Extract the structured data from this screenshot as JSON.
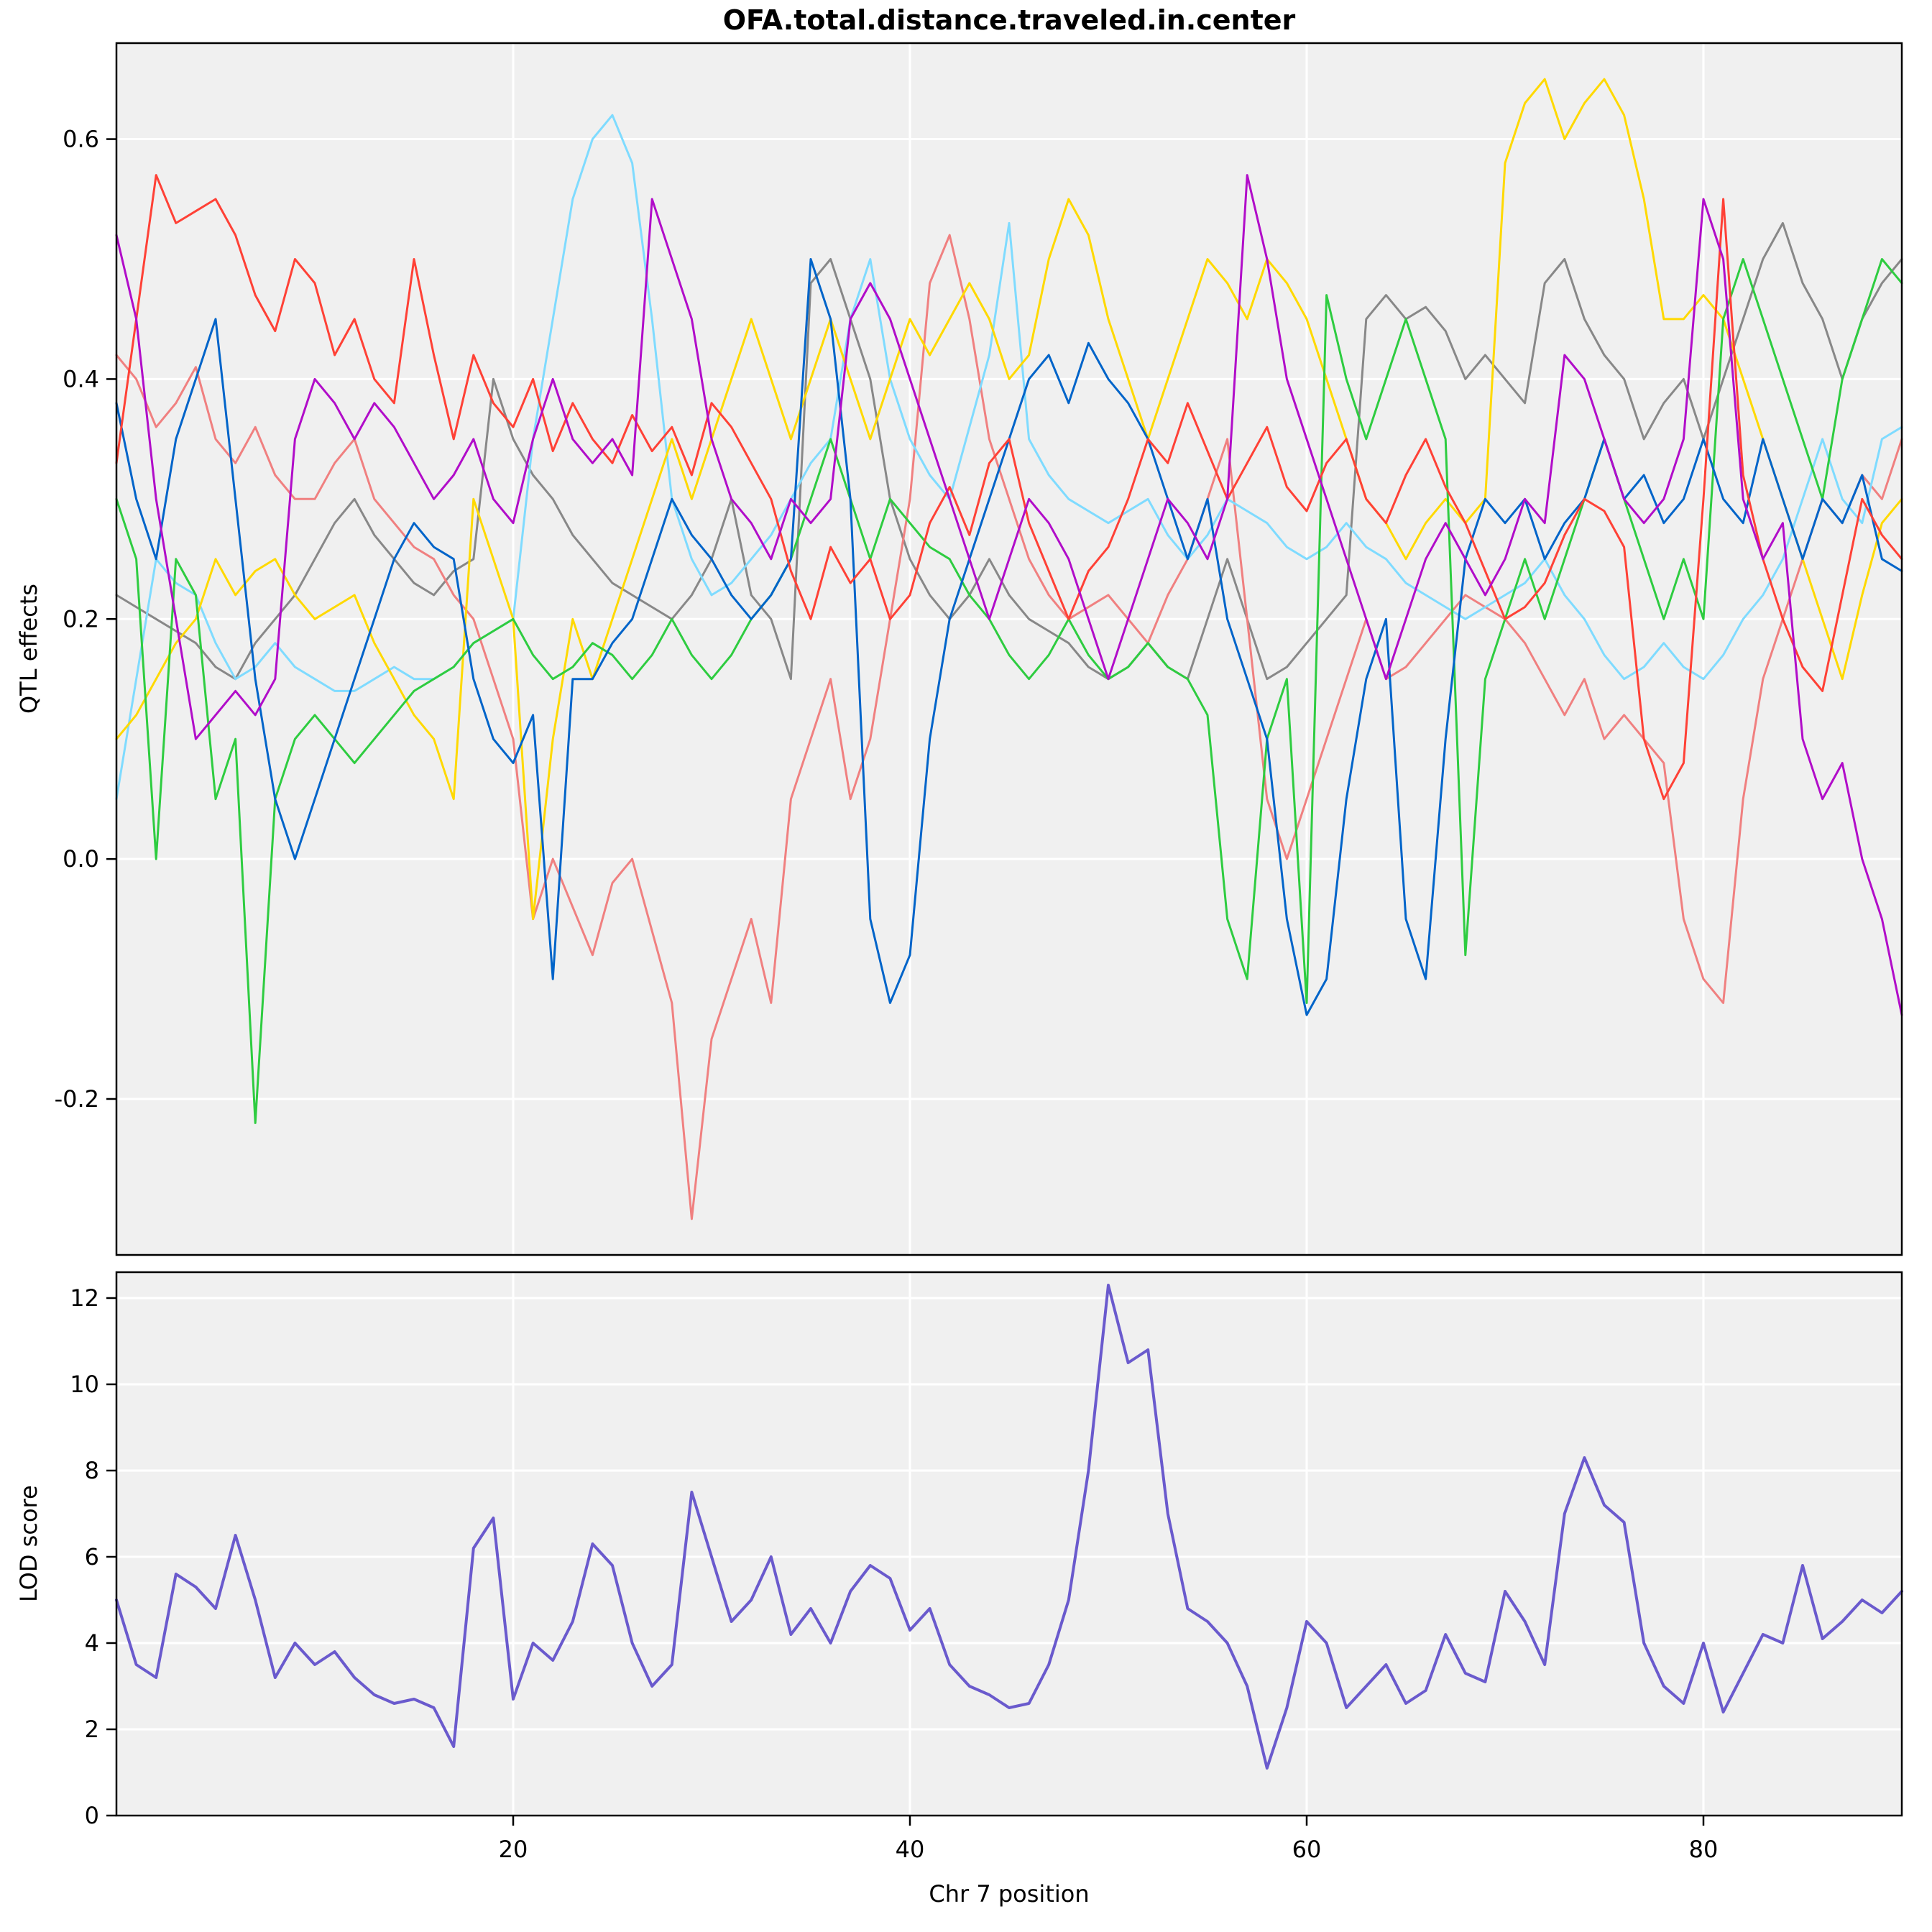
{
  "title": "OFA.total.distance.traveled.in.center",
  "chart_data": [
    {
      "type": "line",
      "title": "OFA.total.distance.traveled.in.center",
      "ylabel": "QTL effects",
      "xlabel": "",
      "xlim": [
        0,
        90
      ],
      "ylim": [
        -0.33,
        0.68
      ],
      "xticks": [
        20,
        40,
        60,
        80
      ],
      "xtick_labels": [
        "20",
        "40",
        "60",
        "80"
      ],
      "yticks": [
        -0.2,
        0.0,
        0.2,
        0.4,
        0.6
      ],
      "ytick_labels": [
        "-0.2",
        "0.0",
        "0.2",
        "0.4",
        "0.6"
      ],
      "panel_bg": "#F0F0F0",
      "grid_color": "#FFFFFF",
      "legend": "none",
      "series": [
        {
          "name": "gray",
          "color": "#888888",
          "width": 3,
          "values": [
            0.22,
            0.21,
            0.2,
            0.19,
            0.18,
            0.16,
            0.15,
            0.18,
            0.2,
            0.22,
            0.25,
            0.28,
            0.3,
            0.27,
            0.25,
            0.23,
            0.22,
            0.24,
            0.25,
            0.4,
            0.35,
            0.32,
            0.3,
            0.27,
            0.25,
            0.23,
            0.22,
            0.21,
            0.2,
            0.22,
            0.25,
            0.3,
            0.22,
            0.2,
            0.15,
            0.48,
            0.5,
            0.45,
            0.4,
            0.3,
            0.25,
            0.22,
            0.2,
            0.22,
            0.25,
            0.22,
            0.2,
            0.19,
            0.18,
            0.16,
            0.15,
            0.16,
            0.18,
            0.16,
            0.15,
            0.2,
            0.25,
            0.2,
            0.15,
            0.16,
            0.18,
            0.2,
            0.22,
            0.45,
            0.47,
            0.45,
            0.46,
            0.44,
            0.4,
            0.42,
            0.4,
            0.38,
            0.48,
            0.5,
            0.45,
            0.42,
            0.4,
            0.35,
            0.38,
            0.4,
            0.35,
            0.4,
            0.45,
            0.5,
            0.53,
            0.48,
            0.45,
            0.4,
            0.45,
            0.48,
            0.5
          ]
        },
        {
          "name": "salmon",
          "color": "#F08080",
          "width": 3,
          "values": [
            0.42,
            0.4,
            0.36,
            0.38,
            0.41,
            0.35,
            0.33,
            0.36,
            0.32,
            0.3,
            0.3,
            0.33,
            0.35,
            0.3,
            0.28,
            0.26,
            0.25,
            0.22,
            0.2,
            0.15,
            0.1,
            -0.05,
            0.0,
            -0.04,
            -0.08,
            -0.02,
            0.0,
            -0.06,
            -0.12,
            -0.3,
            -0.15,
            -0.1,
            -0.05,
            -0.12,
            0.05,
            0.1,
            0.15,
            0.05,
            0.1,
            0.2,
            0.3,
            0.48,
            0.52,
            0.45,
            0.35,
            0.3,
            0.25,
            0.22,
            0.2,
            0.21,
            0.22,
            0.2,
            0.18,
            0.22,
            0.25,
            0.3,
            0.35,
            0.2,
            0.05,
            0.0,
            0.05,
            0.1,
            0.15,
            0.2,
            0.15,
            0.16,
            0.18,
            0.2,
            0.22,
            0.21,
            0.2,
            0.18,
            0.15,
            0.12,
            0.15,
            0.1,
            0.12,
            0.1,
            0.08,
            -0.05,
            -0.1,
            -0.12,
            0.05,
            0.15,
            0.2,
            0.25,
            0.3,
            0.28,
            0.32,
            0.3,
            0.35
          ]
        },
        {
          "name": "light-blue",
          "color": "#7FDBFF",
          "width": 3,
          "values": [
            0.05,
            0.15,
            0.25,
            0.23,
            0.22,
            0.18,
            0.15,
            0.16,
            0.18,
            0.16,
            0.15,
            0.14,
            0.14,
            0.15,
            0.16,
            0.15,
            0.15,
            0.16,
            0.18,
            0.19,
            0.2,
            0.35,
            0.45,
            0.55,
            0.6,
            0.62,
            0.58,
            0.45,
            0.3,
            0.25,
            0.22,
            0.23,
            0.25,
            0.27,
            0.3,
            0.33,
            0.35,
            0.45,
            0.5,
            0.4,
            0.35,
            0.32,
            0.3,
            0.36,
            0.42,
            0.53,
            0.35,
            0.32,
            0.3,
            0.29,
            0.28,
            0.29,
            0.3,
            0.27,
            0.25,
            0.27,
            0.3,
            0.29,
            0.28,
            0.26,
            0.25,
            0.26,
            0.28,
            0.26,
            0.25,
            0.23,
            0.22,
            0.21,
            0.2,
            0.21,
            0.22,
            0.23,
            0.25,
            0.22,
            0.2,
            0.17,
            0.15,
            0.16,
            0.18,
            0.16,
            0.15,
            0.17,
            0.2,
            0.22,
            0.25,
            0.3,
            0.35,
            0.3,
            0.28,
            0.35,
            0.36
          ]
        },
        {
          "name": "yellow",
          "color": "#FFD900",
          "width": 3,
          "values": [
            0.1,
            0.12,
            0.15,
            0.18,
            0.2,
            0.25,
            0.22,
            0.24,
            0.25,
            0.22,
            0.2,
            0.21,
            0.22,
            0.18,
            0.15,
            0.12,
            0.1,
            0.05,
            0.3,
            0.25,
            0.2,
            -0.05,
            0.1,
            0.2,
            0.15,
            0.2,
            0.25,
            0.3,
            0.35,
            0.3,
            0.35,
            0.4,
            0.45,
            0.4,
            0.35,
            0.4,
            0.45,
            0.4,
            0.35,
            0.4,
            0.45,
            0.42,
            0.45,
            0.48,
            0.45,
            0.4,
            0.42,
            0.5,
            0.55,
            0.52,
            0.45,
            0.4,
            0.35,
            0.4,
            0.45,
            0.5,
            0.48,
            0.45,
            0.5,
            0.48,
            0.45,
            0.4,
            0.35,
            0.3,
            0.28,
            0.25,
            0.28,
            0.3,
            0.28,
            0.3,
            0.58,
            0.63,
            0.65,
            0.6,
            0.63,
            0.65,
            0.62,
            0.55,
            0.45,
            0.45,
            0.47,
            0.45,
            0.4,
            0.35,
            0.3,
            0.25,
            0.2,
            0.15,
            0.22,
            0.28,
            0.3
          ]
        },
        {
          "name": "green",
          "color": "#2ECC40",
          "width": 3,
          "values": [
            0.3,
            0.25,
            0.0,
            0.25,
            0.22,
            0.05,
            0.1,
            -0.22,
            0.05,
            0.1,
            0.12,
            0.1,
            0.08,
            0.1,
            0.12,
            0.14,
            0.15,
            0.16,
            0.18,
            0.19,
            0.2,
            0.17,
            0.15,
            0.16,
            0.18,
            0.17,
            0.15,
            0.17,
            0.2,
            0.17,
            0.15,
            0.17,
            0.2,
            0.22,
            0.25,
            0.3,
            0.35,
            0.3,
            0.25,
            0.3,
            0.28,
            0.26,
            0.25,
            0.22,
            0.2,
            0.17,
            0.15,
            0.17,
            0.2,
            0.17,
            0.15,
            0.16,
            0.18,
            0.16,
            0.15,
            0.12,
            -0.05,
            -0.1,
            0.1,
            0.15,
            -0.12,
            0.47,
            0.4,
            0.35,
            0.4,
            0.45,
            0.4,
            0.35,
            -0.08,
            0.15,
            0.2,
            0.25,
            0.2,
            0.25,
            0.3,
            0.35,
            0.3,
            0.25,
            0.2,
            0.25,
            0.2,
            0.45,
            0.5,
            0.45,
            0.4,
            0.35,
            0.3,
            0.4,
            0.45,
            0.5,
            0.48
          ]
        },
        {
          "name": "dark-blue",
          "color": "#0064C9",
          "width": 3,
          "values": [
            0.38,
            0.3,
            0.25,
            0.35,
            0.4,
            0.45,
            0.3,
            0.15,
            0.05,
            0.0,
            0.05,
            0.1,
            0.15,
            0.2,
            0.25,
            0.28,
            0.26,
            0.25,
            0.15,
            0.1,
            0.08,
            0.12,
            -0.1,
            0.15,
            0.15,
            0.18,
            0.2,
            0.25,
            0.3,
            0.27,
            0.25,
            0.22,
            0.2,
            0.22,
            0.25,
            0.5,
            0.45,
            0.3,
            -0.05,
            -0.12,
            -0.08,
            0.1,
            0.2,
            0.25,
            0.3,
            0.35,
            0.4,
            0.42,
            0.38,
            0.43,
            0.4,
            0.38,
            0.35,
            0.3,
            0.25,
            0.3,
            0.2,
            0.15,
            0.1,
            -0.05,
            -0.13,
            -0.1,
            0.05,
            0.15,
            0.2,
            -0.05,
            -0.1,
            0.1,
            0.25,
            0.3,
            0.28,
            0.3,
            0.25,
            0.28,
            0.3,
            0.35,
            0.3,
            0.32,
            0.28,
            0.3,
            0.35,
            0.3,
            0.28,
            0.35,
            0.3,
            0.25,
            0.3,
            0.28,
            0.32,
            0.25,
            0.24
          ]
        },
        {
          "name": "red",
          "color": "#FF4136",
          "width": 3,
          "values": [
            0.33,
            0.45,
            0.57,
            0.53,
            0.54,
            0.55,
            0.52,
            0.47,
            0.44,
            0.5,
            0.48,
            0.42,
            0.45,
            0.4,
            0.38,
            0.5,
            0.42,
            0.35,
            0.42,
            0.38,
            0.36,
            0.4,
            0.34,
            0.38,
            0.35,
            0.33,
            0.37,
            0.34,
            0.36,
            0.32,
            0.38,
            0.36,
            0.33,
            0.3,
            0.24,
            0.2,
            0.26,
            0.23,
            0.25,
            0.2,
            0.22,
            0.28,
            0.31,
            0.27,
            0.33,
            0.35,
            0.28,
            0.24,
            0.2,
            0.24,
            0.26,
            0.3,
            0.35,
            0.33,
            0.38,
            0.34,
            0.3,
            0.33,
            0.36,
            0.31,
            0.29,
            0.33,
            0.35,
            0.3,
            0.28,
            0.32,
            0.35,
            0.31,
            0.28,
            0.24,
            0.2,
            0.21,
            0.23,
            0.27,
            0.3,
            0.29,
            0.26,
            0.1,
            0.05,
            0.08,
            0.3,
            0.55,
            0.32,
            0.25,
            0.2,
            0.16,
            0.14,
            0.22,
            0.3,
            0.27,
            0.25
          ]
        },
        {
          "name": "purple",
          "color": "#B10DC9",
          "width": 3,
          "values": [
            0.52,
            0.45,
            0.3,
            0.2,
            0.1,
            0.12,
            0.14,
            0.12,
            0.15,
            0.35,
            0.4,
            0.38,
            0.35,
            0.38,
            0.36,
            0.33,
            0.3,
            0.32,
            0.35,
            0.3,
            0.28,
            0.35,
            0.4,
            0.35,
            0.33,
            0.35,
            0.32,
            0.55,
            0.5,
            0.45,
            0.35,
            0.3,
            0.28,
            0.25,
            0.3,
            0.28,
            0.3,
            0.45,
            0.48,
            0.45,
            0.4,
            0.35,
            0.3,
            0.25,
            0.2,
            0.25,
            0.3,
            0.28,
            0.25,
            0.2,
            0.15,
            0.2,
            0.25,
            0.3,
            0.28,
            0.25,
            0.3,
            0.57,
            0.5,
            0.4,
            0.35,
            0.3,
            0.25,
            0.2,
            0.15,
            0.2,
            0.25,
            0.28,
            0.25,
            0.22,
            0.25,
            0.3,
            0.28,
            0.42,
            0.4,
            0.35,
            0.3,
            0.28,
            0.3,
            0.35,
            0.55,
            0.5,
            0.3,
            0.25,
            0.28,
            0.1,
            0.05,
            0.08,
            0.0,
            -0.05,
            -0.13
          ]
        }
      ]
    },
    {
      "type": "line",
      "title": "",
      "ylabel": "LOD score",
      "xlabel": "Chr 7 position",
      "xlim": [
        0,
        90
      ],
      "ylim": [
        0,
        12.6
      ],
      "xticks": [
        20,
        40,
        60,
        80
      ],
      "xtick_labels": [
        "20",
        "40",
        "60",
        "80"
      ],
      "yticks": [
        0,
        2,
        4,
        6,
        8,
        10,
        12
      ],
      "ytick_labels": [
        "0",
        "2",
        "4",
        "6",
        "8",
        "10",
        "12"
      ],
      "panel_bg": "#F0F0F0",
      "grid_color": "#FFFFFF",
      "legend": "none",
      "series": [
        {
          "name": "lod",
          "color": "#6A5ACD",
          "width": 4,
          "values": [
            5.0,
            3.5,
            3.2,
            5.6,
            5.3,
            4.8,
            6.5,
            5.0,
            3.2,
            4.0,
            3.5,
            3.8,
            3.2,
            2.8,
            2.6,
            2.7,
            2.5,
            1.6,
            6.2,
            6.9,
            2.7,
            4.0,
            3.6,
            4.5,
            6.3,
            5.8,
            4.0,
            3.0,
            3.5,
            7.5,
            6.0,
            4.5,
            5.0,
            6.0,
            4.2,
            4.8,
            4.0,
            5.2,
            5.8,
            5.5,
            4.3,
            4.8,
            3.5,
            3.0,
            2.8,
            2.5,
            2.6,
            3.5,
            5.0,
            8.0,
            12.3,
            10.5,
            10.8,
            7.0,
            4.8,
            4.5,
            4.0,
            3.0,
            1.1,
            2.5,
            4.5,
            4.0,
            2.5,
            3.0,
            3.5,
            2.6,
            2.9,
            4.2,
            3.3,
            3.1,
            5.2,
            4.5,
            3.5,
            7.0,
            8.3,
            7.2,
            6.8,
            4.0,
            3.0,
            2.6,
            4.0,
            2.4,
            3.3,
            4.2,
            4.0,
            5.8,
            4.1,
            4.5,
            5.0,
            4.7,
            5.2
          ]
        }
      ]
    }
  ]
}
